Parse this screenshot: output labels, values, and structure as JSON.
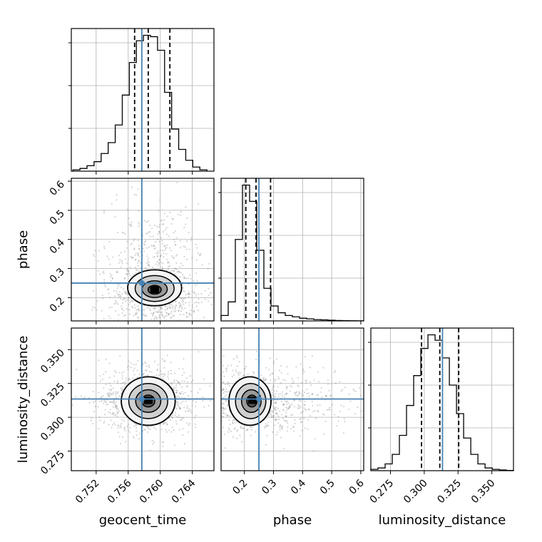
{
  "chart_data": {
    "type": "corner",
    "parameters": [
      "geocent_time",
      "phase",
      "luminosity_distance"
    ],
    "truth": {
      "geocent_time": 0.7577,
      "phase": 0.25,
      "luminosity_distance": 0.3135
    },
    "quantiles": {
      "geocent_time": [
        0.7568,
        0.7585,
        0.7612
      ],
      "phase": [
        0.205,
        0.24,
        0.29
      ],
      "luminosity_distance": [
        0.298,
        0.3115,
        0.3255
      ]
    },
    "ranges": {
      "geocent_time": [
        0.7489,
        0.7667
      ],
      "phase": [
        0.12,
        0.61
      ],
      "luminosity_distance": [
        0.2605,
        0.366
      ]
    },
    "ticks": {
      "geocent_time": [
        "0.752",
        "0.756",
        "0.760",
        "0.764"
      ],
      "phase": [
        "0.2",
        "0.3",
        "0.4",
        "0.5",
        "0.6"
      ],
      "luminosity_distance": [
        "0.275",
        "0.300",
        "0.325",
        "0.350"
      ]
    },
    "y_ticks": {
      "phase": [
        "0.2",
        "0.3",
        "0.4",
        "0.5",
        "0.6"
      ],
      "luminosity_distance": [
        "0.275",
        "0.300",
        "0.325",
        "0.350"
      ]
    },
    "histograms": {
      "geocent_time": {
        "edges_start": 0.7491,
        "bin_width": 0.00088,
        "counts": [
          1,
          2,
          4,
          7,
          13,
          21,
          34,
          56,
          80,
          96,
          100,
          99,
          89,
          58,
          31,
          16,
          8,
          3,
          1
        ]
      },
      "phase": {
        "edges_start": 0.12,
        "bin_width": 0.0245,
        "counts": [
          4,
          14,
          60,
          100,
          88,
          52,
          24,
          11,
          6,
          4,
          3,
          2,
          1.5,
          1,
          0.8,
          0.5,
          0.3,
          0.2,
          0.1,
          0.05
        ]
      },
      "luminosity_distance": {
        "edges_start": 0.2605,
        "bin_width": 0.00528,
        "counts": [
          1,
          2,
          5,
          12,
          26,
          48,
          70,
          90,
          100,
          96,
          83,
          63,
          42,
          24,
          12,
          5,
          2,
          1,
          0.5,
          0.2
        ]
      }
    },
    "pairs": [
      {
        "x": "geocent_time",
        "y": "phase",
        "peak": [
          0.7593,
          0.225
        ]
      },
      {
        "x": "geocent_time",
        "y": "luminosity_distance",
        "peak": [
          0.7585,
          0.312
        ]
      },
      {
        "x": "phase",
        "y": "luminosity_distance",
        "peak": [
          0.228,
          0.312
        ]
      }
    ],
    "colors": {
      "truth": "#4682b4",
      "hist": "#000000",
      "quantile": "#000000",
      "grid": "#b0b0b0"
    }
  }
}
